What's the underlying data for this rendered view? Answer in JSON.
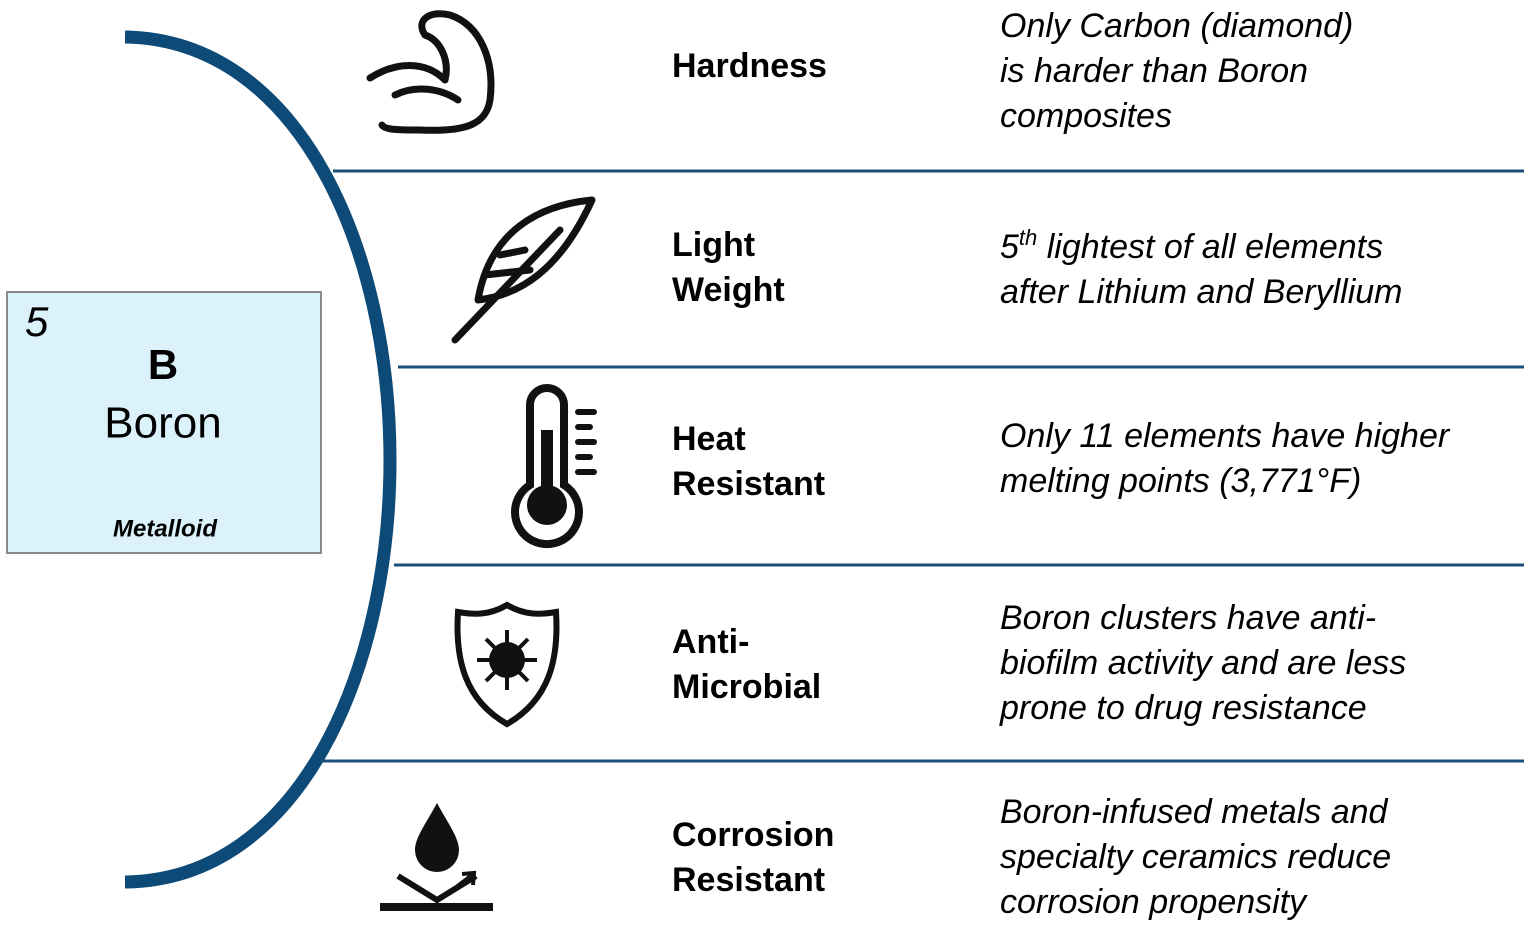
{
  "element": {
    "number": "5",
    "symbol": "B",
    "name": "Boron",
    "category": "Metalloid"
  },
  "properties": [
    {
      "label_lines": [
        "Hardness"
      ],
      "description_lines": [
        "Only Carbon (diamond)",
        "is harder than Boron",
        "composites"
      ]
    },
    {
      "label_lines": [
        "Light",
        "Weight"
      ],
      "description_lines": [
        {
          "text": "5",
          "sup": "th",
          "rest": " lightest of all elements"
        },
        "after Lithium and Beryllium"
      ]
    },
    {
      "label_lines": [
        "Heat",
        "Resistant"
      ],
      "description_lines": [
        "Only 11 elements have higher",
        "melting points (3,771°F)"
      ]
    },
    {
      "label_lines": [
        "Anti-",
        "Microbial"
      ],
      "description_lines": [
        "Boron clusters have anti-",
        "biofilm activity and are less",
        "prone to drug resistance"
      ]
    },
    {
      "label_lines": [
        "Corrosion",
        "Resistant"
      ],
      "description_lines": [
        "Boron-infused metals and",
        "specialty ceramics reduce",
        "corrosion propensity"
      ]
    }
  ]
}
